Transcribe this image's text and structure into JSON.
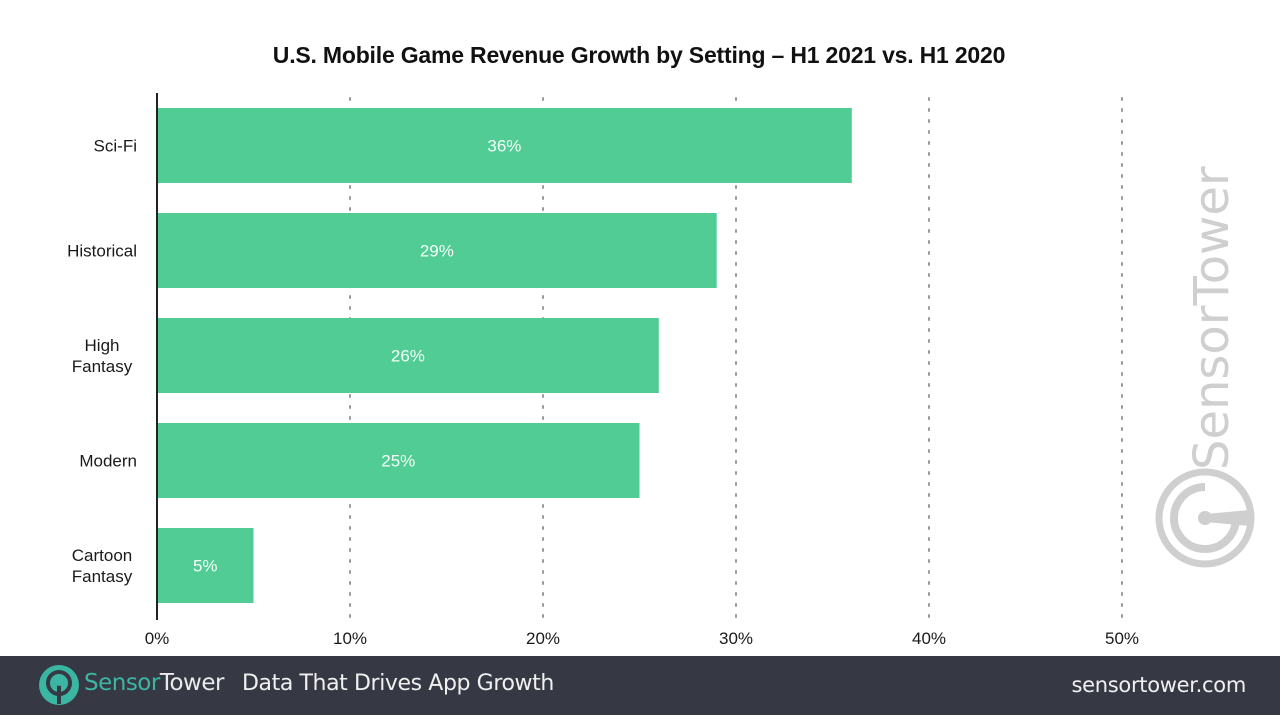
{
  "chart_data": {
    "type": "bar",
    "orientation": "horizontal",
    "title": "U.S. Mobile Game Revenue Growth by Setting – H1 2021 vs. H1 2020",
    "xlabel": "",
    "ylabel": "",
    "categories": [
      "Sci-Fi",
      "Historical",
      "High Fantasy",
      "Modern",
      "Cartoon Fantasy"
    ],
    "category_lines": [
      [
        "Sci-Fi"
      ],
      [
        "Historical"
      ],
      [
        "High",
        "Fantasy"
      ],
      [
        "Modern"
      ],
      [
        "Cartoon",
        "Fantasy"
      ]
    ],
    "values": [
      36,
      29,
      26,
      25,
      5
    ],
    "data_labels": [
      "36%",
      "29%",
      "26%",
      "25%",
      "5%"
    ],
    "xlim": [
      0,
      50
    ],
    "xticks": [
      0,
      10,
      20,
      30,
      40,
      50
    ],
    "xtick_labels": [
      "0%",
      "10%",
      "20%",
      "30%",
      "40%",
      "50%"
    ],
    "grid": "vertical dotted",
    "legend": "none",
    "bar_color": "#52cc95"
  },
  "watermark": {
    "text": "SensorTower",
    "color": "#cfcfcf"
  },
  "footer": {
    "brand_part1": "Sensor",
    "brand_part2": "Tower",
    "tagline": "Data That Drives App Growth",
    "url": "sensortower.com",
    "background": "#363944",
    "brand_color": "#3bb6a3"
  }
}
